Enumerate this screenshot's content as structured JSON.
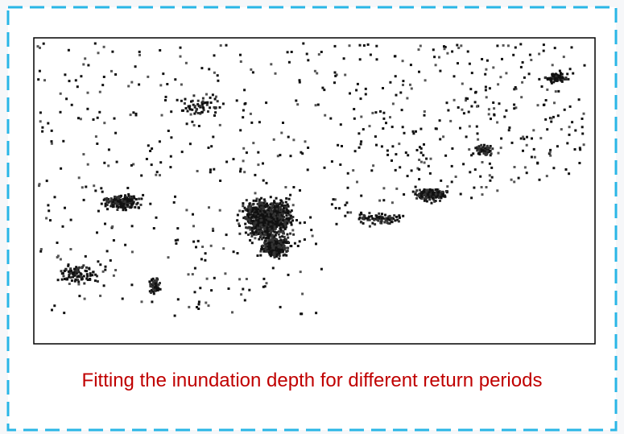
{
  "caption": "Fitting the inundation depth for different return periods"
}
